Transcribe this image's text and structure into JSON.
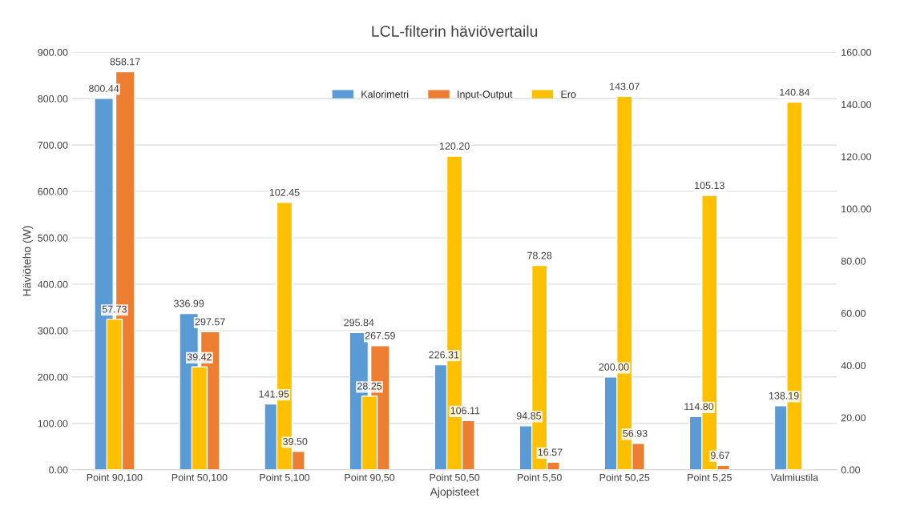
{
  "chart_data": {
    "type": "bar",
    "title": "LCL-filterin häviövertailu",
    "xlabel": "Ajopisteet",
    "ylabel": "Häviöteho (W)",
    "categories": [
      "Point 90,100",
      "Point 50,100",
      "Point 5,100",
      "Point 90,50",
      "Point 50,50",
      "Point 5,50",
      "Point 50,25",
      "Point 5,25",
      "Valmiustila"
    ],
    "series": [
      {
        "name": "Kalorimetri",
        "color": "#5b9bd5",
        "values": [
          800.44,
          336.99,
          141.95,
          295.84,
          226.31,
          94.85,
          200.0,
          114.8,
          138.19
        ],
        "value_labels": [
          "800.44",
          "336.99",
          "141.95",
          "295.84",
          "226.31",
          "94.85",
          "200.00",
          "114.80",
          "138.19"
        ]
      },
      {
        "name": "Input-Output",
        "color": "#ed7d31",
        "values": [
          858.17,
          297.57,
          39.5,
          267.59,
          106.11,
          16.57,
          56.93,
          9.67,
          null
        ],
        "value_labels": [
          "858.17",
          "297.57",
          "39.50",
          "267.59",
          "106.11",
          "16.57",
          "56.93",
          "9.67",
          null
        ]
      },
      {
        "name": "Ero",
        "color": "#ffc000",
        "axis": "y2",
        "values": [
          57.73,
          39.42,
          102.45,
          28.25,
          120.2,
          78.28,
          143.07,
          105.13,
          140.84
        ],
        "value_labels": [
          "57.73",
          "39.42",
          "102.45",
          "28.25",
          "120.20",
          "78.28",
          "143.07",
          "105.13",
          "140.84"
        ]
      }
    ],
    "ylim": [
      0,
      900
    ],
    "yticks": [
      {
        "value": 0,
        "label": "0.00"
      },
      {
        "value": 100,
        "label": "100.00"
      },
      {
        "value": 200,
        "label": "200.00"
      },
      {
        "value": 300,
        "label": "300.00"
      },
      {
        "value": 400,
        "label": "400.00"
      },
      {
        "value": 500,
        "label": "500.00"
      },
      {
        "value": 600,
        "label": "600.00"
      },
      {
        "value": 700,
        "label": "700.00"
      },
      {
        "value": 800,
        "label": "800.00"
      },
      {
        "value": 900,
        "label": "900.00"
      }
    ],
    "y2lim": [
      0,
      160
    ],
    "y2ticks": [
      {
        "value": 0,
        "label": "0.00"
      },
      {
        "value": 20,
        "label": "20.00"
      },
      {
        "value": 40,
        "label": "40.00"
      },
      {
        "value": 60,
        "label": "60.00"
      },
      {
        "value": 80,
        "label": "80.00"
      },
      {
        "value": 100,
        "label": "100.00"
      },
      {
        "value": 120,
        "label": "120.00"
      },
      {
        "value": 140,
        "label": "140.00"
      },
      {
        "value": 160,
        "label": "160.00"
      }
    ],
    "grid": "y",
    "legend": "top"
  }
}
